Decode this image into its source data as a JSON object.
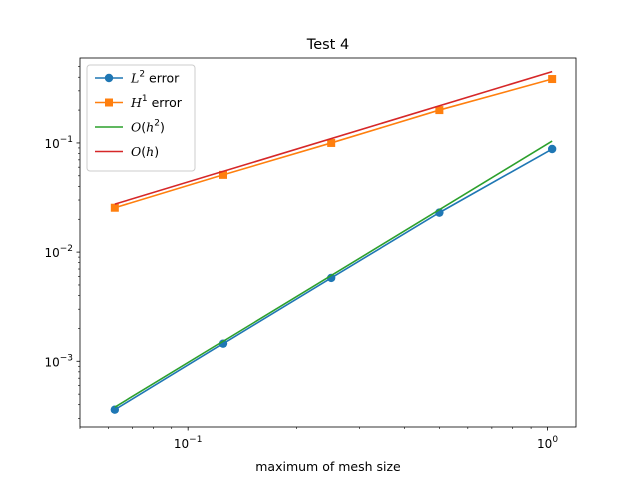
{
  "chart_data": {
    "type": "line",
    "title": "Test 4",
    "xlabel": "maximum of mesh size",
    "ylabel": "",
    "xscale": "log",
    "yscale": "log",
    "xlim": [
      0.05,
      1.2
    ],
    "ylim": [
      0.00025,
      0.6
    ],
    "grid": false,
    "legend_position": "top-left",
    "x_tick_labels": [
      {
        "value": 0.1,
        "base": "10",
        "exp": "−1"
      },
      {
        "value": 1,
        "base": "10",
        "exp": "0"
      }
    ],
    "y_tick_labels": [
      {
        "value": 0.001,
        "base": "10",
        "exp": "−3"
      },
      {
        "value": 0.01,
        "base": "10",
        "exp": "−2"
      },
      {
        "value": 0.1,
        "base": "10",
        "exp": "−1"
      }
    ],
    "series": [
      {
        "name": "L2 error",
        "label_parts": [
          {
            "t": "L",
            "it": true
          },
          {
            "t": "2",
            "sup": true
          },
          {
            "t": " error"
          }
        ],
        "color": "#1f77b4",
        "marker": "circle",
        "x": [
          0.0625,
          0.125,
          0.25,
          0.5,
          1.03
        ],
        "y": [
          0.00036,
          0.00145,
          0.0058,
          0.023,
          0.088
        ]
      },
      {
        "name": "H1 error",
        "label_parts": [
          {
            "t": "H",
            "it": true
          },
          {
            "t": "1",
            "sup": true
          },
          {
            "t": " error"
          }
        ],
        "color": "#ff7f0e",
        "marker": "square",
        "x": [
          0.0625,
          0.125,
          0.25,
          0.5,
          1.03
        ],
        "y": [
          0.0255,
          0.051,
          0.1,
          0.2,
          0.385
        ]
      },
      {
        "name": "O(h2)",
        "label_parts": [
          {
            "t": "O",
            "it": true
          },
          {
            "t": "("
          },
          {
            "t": "h",
            "it": true
          },
          {
            "t": "2",
            "sup": true
          },
          {
            "t": ")"
          }
        ],
        "color": "#2ca02c",
        "marker": "none",
        "x": [
          0.0625,
          1.03
        ],
        "y": [
          0.00038,
          0.104
        ]
      },
      {
        "name": "O(h)",
        "label_parts": [
          {
            "t": "O",
            "it": true
          },
          {
            "t": "("
          },
          {
            "t": "h",
            "it": true
          },
          {
            "t": ")"
          }
        ],
        "color": "#d62728",
        "marker": "none",
        "x": [
          0.0625,
          1.03
        ],
        "y": [
          0.0275,
          0.45
        ]
      }
    ]
  }
}
